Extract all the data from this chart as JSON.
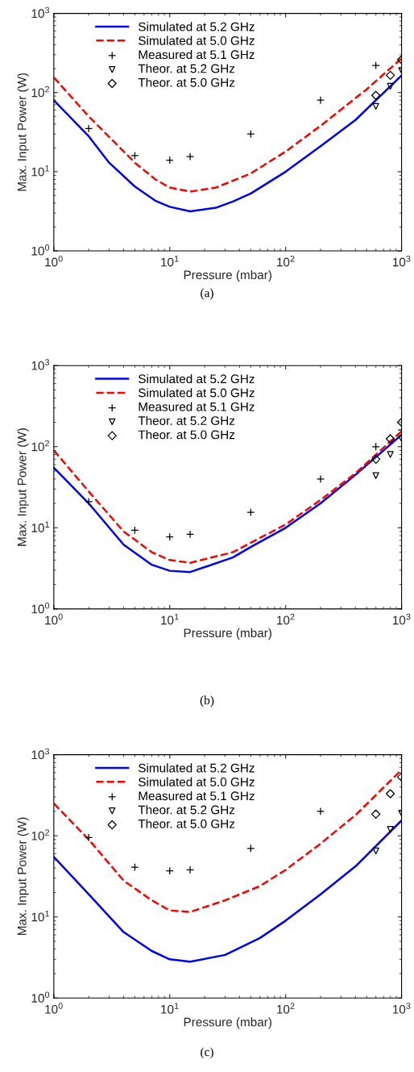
{
  "chart_data": [
    {
      "type": "line",
      "xlabel": "Pressure (mbar)",
      "ylabel": "Max. Input Power (W)",
      "log": "xy",
      "legend": "top",
      "grid": false,
      "xlim": [
        1,
        1000
      ],
      "ylim": [
        1,
        1000
      ],
      "xticks": [
        {
          "value": 1,
          "label": "10$^{0}$"
        },
        {
          "value": 10,
          "label": "10$^{1}$"
        },
        {
          "value": 100,
          "label": "10$^{2}$"
        },
        {
          "value": 1000,
          "label": "10$^{3}$"
        }
      ],
      "yticks": [
        {
          "value": 1,
          "label": "10$^{0}$"
        },
        {
          "value": 10,
          "label": "10$^{1}$"
        },
        {
          "value": 100,
          "label": "10$^{2}$"
        },
        {
          "value": 1000,
          "label": "10$^{3}$"
        }
      ],
      "annotations": [
        "(a)"
      ],
      "series": [
        {
          "name": "Simulated at 5.2 GHz",
          "color": "#0000ff",
          "line_style": "solid",
          "marker": "none",
          "x": [
            1,
            2,
            3,
            5,
            7.5,
            10,
            15,
            25,
            35,
            50,
            100,
            200,
            400,
            1000
          ],
          "values": [
            80,
            28,
            13,
            6.5,
            4.3,
            3.6,
            3.15,
            3.5,
            4.2,
            5.3,
            10,
            21,
            45,
            165
          ]
        },
        {
          "name": "Simulated at 5.0 GHz",
          "color": "#ff0000",
          "line_style": "dashed",
          "marker": "none",
          "x": [
            1,
            2,
            5,
            7.5,
            10,
            15,
            25,
            50,
            100,
            200,
            500,
            1000
          ],
          "values": [
            155,
            50,
            13,
            8,
            6.3,
            5.6,
            6.3,
            9.5,
            18,
            38,
            110,
            270
          ]
        },
        {
          "name": "Measured at 5.1 GHz",
          "type": "scatter",
          "color": "#000000",
          "marker": "cross",
          "x": [
            2,
            5,
            10,
            15,
            50,
            200,
            600
          ],
          "values": [
            35,
            16,
            14,
            15.5,
            30,
            80,
            220
          ]
        },
        {
          "name": "Theor. at 5.2 GHz",
          "type": "scatter",
          "color": "#000000",
          "marker": "triangle",
          "x": [
            600,
            800,
            1000
          ],
          "values": [
            67,
            120,
            190
          ]
        },
        {
          "name": "Theor. at 5.0 GHz",
          "type": "scatter",
          "color": "#000000",
          "marker": "diamond",
          "x": [
            600,
            800,
            1000
          ],
          "values": [
            92,
            165,
            260
          ]
        }
      ]
    },
    {
      "type": "line",
      "xlabel": "Pressure (mbar)",
      "ylabel": "Max. Input Power (W)",
      "log": "xy",
      "legend": "top",
      "grid": false,
      "xlim": [
        1,
        1000
      ],
      "ylim": [
        1,
        1000
      ],
      "xticks": [
        {
          "value": 1,
          "label": "10$^{0}$"
        },
        {
          "value": 10,
          "label": "10$^{1}$"
        },
        {
          "value": 100,
          "label": "10$^{2}$"
        },
        {
          "value": 1000,
          "label": "10$^{3}$"
        }
      ],
      "yticks": [
        {
          "value": 1,
          "label": "10$^{0}$"
        },
        {
          "value": 10,
          "label": "10$^{1}$"
        },
        {
          "value": 100,
          "label": "10$^{2}$"
        },
        {
          "value": 1000,
          "label": "10$^{3}$"
        }
      ],
      "annotations": [
        "(b)"
      ],
      "series": [
        {
          "name": "Simulated at 5.2 GHz",
          "color": "#0000ff",
          "line_style": "solid",
          "marker": "none",
          "x": [
            1,
            2,
            4,
            7,
            10,
            15,
            35,
            50,
            100,
            200,
            400,
            1000
          ],
          "values": [
            55,
            20,
            6.2,
            3.5,
            2.95,
            2.85,
            4.3,
            5.8,
            10,
            20,
            45,
            140
          ]
        },
        {
          "name": "Simulated at 5.0 GHz",
          "color": "#ff0000",
          "line_style": "dashed",
          "marker": "none",
          "x": [
            1,
            2,
            4,
            7,
            10,
            15,
            35,
            100,
            200,
            400,
            1000
          ],
          "values": [
            90,
            28,
            9,
            5,
            4,
            3.7,
            5,
            11,
            22,
            47,
            155
          ]
        },
        {
          "name": "Measured at 5.1 GHz",
          "type": "scatter",
          "color": "#000000",
          "marker": "cross",
          "x": [
            2,
            5,
            10,
            15,
            50,
            200,
            600,
            1000
          ],
          "values": [
            21,
            9.3,
            7.7,
            8.3,
            15.5,
            40,
            100,
            160
          ]
        },
        {
          "name": "Theor. at 5.2 GHz",
          "type": "scatter",
          "color": "#000000",
          "marker": "triangle",
          "x": [
            600,
            800,
            1000
          ],
          "values": [
            44,
            80,
            125
          ]
        },
        {
          "name": "Theor. at 5.0 GHz",
          "type": "scatter",
          "color": "#000000",
          "marker": "diamond",
          "x": [
            600,
            800,
            1000
          ],
          "values": [
            70,
            125,
            200
          ]
        }
      ]
    },
    {
      "type": "line",
      "xlabel": "Pressure (mbar)",
      "ylabel": "Max. Input Power (W)",
      "log": "xy",
      "legend": "top",
      "grid": false,
      "xlim": [
        1,
        1000
      ],
      "ylim": [
        1,
        1000
      ],
      "xticks": [
        {
          "value": 1,
          "label": "10$^{0}$"
        },
        {
          "value": 10,
          "label": "10$^{1}$"
        },
        {
          "value": 100,
          "label": "10$^{2}$"
        },
        {
          "value": 1000,
          "label": "10$^{3}$"
        }
      ],
      "yticks": [
        {
          "value": 1,
          "label": "10$^{0}$"
        },
        {
          "value": 10,
          "label": "10$^{1}$"
        },
        {
          "value": 100,
          "label": "10$^{2}$"
        },
        {
          "value": 1000,
          "label": "10$^{3}$"
        }
      ],
      "annotations": [
        "(c)"
      ],
      "series": [
        {
          "name": "Simulated at 5.2 GHz",
          "color": "#0000ff",
          "line_style": "solid",
          "marker": "none",
          "x": [
            1,
            2,
            4,
            7,
            10,
            15,
            30,
            60,
            100,
            200,
            400,
            1000
          ],
          "values": [
            55,
            19,
            6.5,
            3.8,
            3.0,
            2.8,
            3.4,
            5.5,
            9,
            19,
            42,
            155
          ]
        },
        {
          "name": "Simulated at 5.0 GHz",
          "color": "#ff0000",
          "line_style": "dashed",
          "marker": "none",
          "x": [
            1,
            2,
            4,
            7,
            10,
            15,
            30,
            60,
            100,
            200,
            400,
            1000
          ],
          "values": [
            250,
            90,
            28,
            16,
            12,
            11.5,
            16,
            24,
            38,
            80,
            180,
            650
          ]
        },
        {
          "name": "Measured at 5.1 GHz",
          "type": "scatter",
          "color": "#000000",
          "marker": "cross",
          "x": [
            2,
            5,
            10,
            15,
            50,
            200
          ],
          "values": [
            95,
            41,
            37,
            38,
            70,
            200
          ]
        },
        {
          "name": "Theor. at 5.2 GHz",
          "type": "scatter",
          "color": "#000000",
          "marker": "triangle",
          "x": [
            600,
            800,
            1000
          ],
          "values": [
            65,
            120,
            190
          ]
        },
        {
          "name": "Theor. at 5.0 GHz",
          "type": "scatter",
          "color": "#000000",
          "marker": "diamond",
          "x": [
            600,
            800,
            1000
          ],
          "values": [
            185,
            330,
            530
          ]
        }
      ]
    }
  ]
}
